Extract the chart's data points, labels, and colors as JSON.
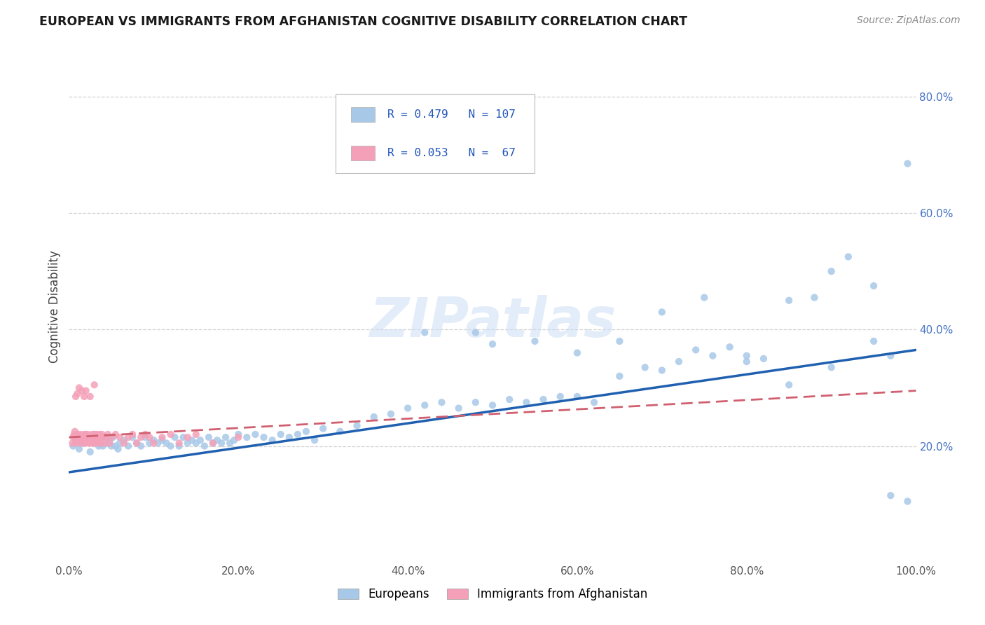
{
  "title": "EUROPEAN VS IMMIGRANTS FROM AFGHANISTAN COGNITIVE DISABILITY CORRELATION CHART",
  "source": "Source: ZipAtlas.com",
  "ylabel": "Cognitive Disability",
  "xlim": [
    0,
    1.0
  ],
  "ylim": [
    0,
    0.88
  ],
  "xticks": [
    0.0,
    0.2,
    0.4,
    0.6,
    0.8,
    1.0
  ],
  "xtick_labels": [
    "0.0%",
    "20.0%",
    "40.0%",
    "60.0%",
    "80.0%",
    "100.0%"
  ],
  "yticks": [
    0.2,
    0.4,
    0.6,
    0.8
  ],
  "ytick_labels": [
    "20.0%",
    "40.0%",
    "60.0%",
    "80.0%"
  ],
  "r_european": 0.479,
  "n_european": 107,
  "r_afghan": 0.053,
  "n_afghan": 67,
  "european_color": "#a8c8e8",
  "afghan_color": "#f4a0b8",
  "european_line_color": "#2060b0",
  "afghan_line_color": "#d06070",
  "background_color": "#ffffff",
  "grid_color": "#cccccc",
  "european_x": [
    0.005,
    0.008,
    0.01,
    0.012,
    0.015,
    0.018,
    0.02,
    0.022,
    0.025,
    0.028,
    0.03,
    0.032,
    0.035,
    0.038,
    0.04,
    0.042,
    0.045,
    0.048,
    0.05,
    0.052,
    0.055,
    0.058,
    0.06,
    0.065,
    0.07,
    0.075,
    0.08,
    0.085,
    0.09,
    0.095,
    0.1,
    0.105,
    0.11,
    0.115,
    0.12,
    0.125,
    0.13,
    0.135,
    0.14,
    0.145,
    0.15,
    0.155,
    0.16,
    0.165,
    0.17,
    0.175,
    0.18,
    0.185,
    0.19,
    0.195,
    0.2,
    0.21,
    0.22,
    0.23,
    0.24,
    0.25,
    0.26,
    0.27,
    0.28,
    0.29,
    0.3,
    0.32,
    0.34,
    0.36,
    0.38,
    0.4,
    0.42,
    0.44,
    0.46,
    0.48,
    0.5,
    0.52,
    0.54,
    0.56,
    0.58,
    0.6,
    0.62,
    0.65,
    0.68,
    0.7,
    0.72,
    0.74,
    0.76,
    0.78,
    0.8,
    0.82,
    0.85,
    0.88,
    0.9,
    0.92,
    0.95,
    0.97,
    0.99,
    0.42,
    0.48,
    0.5,
    0.55,
    0.6,
    0.65,
    0.7,
    0.75,
    0.8,
    0.85,
    0.9,
    0.95,
    0.97,
    0.99
  ],
  "european_y": [
    0.2,
    0.21,
    0.22,
    0.195,
    0.205,
    0.215,
    0.22,
    0.21,
    0.19,
    0.205,
    0.22,
    0.21,
    0.2,
    0.215,
    0.2,
    0.215,
    0.205,
    0.21,
    0.2,
    0.215,
    0.2,
    0.195,
    0.205,
    0.21,
    0.2,
    0.215,
    0.205,
    0.2,
    0.215,
    0.205,
    0.21,
    0.205,
    0.21,
    0.205,
    0.2,
    0.215,
    0.2,
    0.215,
    0.205,
    0.21,
    0.205,
    0.21,
    0.2,
    0.215,
    0.205,
    0.21,
    0.205,
    0.215,
    0.205,
    0.21,
    0.22,
    0.215,
    0.22,
    0.215,
    0.21,
    0.22,
    0.215,
    0.22,
    0.225,
    0.21,
    0.23,
    0.225,
    0.235,
    0.25,
    0.255,
    0.265,
    0.27,
    0.275,
    0.265,
    0.275,
    0.27,
    0.28,
    0.275,
    0.28,
    0.285,
    0.285,
    0.275,
    0.32,
    0.335,
    0.33,
    0.345,
    0.365,
    0.355,
    0.37,
    0.345,
    0.35,
    0.45,
    0.455,
    0.5,
    0.525,
    0.475,
    0.355,
    0.685,
    0.395,
    0.395,
    0.375,
    0.38,
    0.36,
    0.38,
    0.43,
    0.455,
    0.355,
    0.305,
    0.335,
    0.38,
    0.115,
    0.105
  ],
  "afghan_x": [
    0.004,
    0.005,
    0.006,
    0.007,
    0.008,
    0.009,
    0.01,
    0.011,
    0.012,
    0.013,
    0.014,
    0.015,
    0.016,
    0.017,
    0.018,
    0.019,
    0.02,
    0.021,
    0.022,
    0.023,
    0.024,
    0.025,
    0.026,
    0.027,
    0.028,
    0.029,
    0.03,
    0.031,
    0.032,
    0.033,
    0.034,
    0.035,
    0.036,
    0.037,
    0.038,
    0.039,
    0.04,
    0.042,
    0.044,
    0.046,
    0.048,
    0.05,
    0.055,
    0.06,
    0.065,
    0.07,
    0.075,
    0.08,
    0.085,
    0.09,
    0.095,
    0.1,
    0.11,
    0.12,
    0.13,
    0.14,
    0.15,
    0.17,
    0.2,
    0.008,
    0.01,
    0.012,
    0.015,
    0.018,
    0.02,
    0.025,
    0.03
  ],
  "afghan_y": [
    0.205,
    0.215,
    0.22,
    0.225,
    0.205,
    0.21,
    0.215,
    0.22,
    0.215,
    0.205,
    0.215,
    0.22,
    0.215,
    0.205,
    0.215,
    0.22,
    0.205,
    0.21,
    0.22,
    0.215,
    0.205,
    0.21,
    0.215,
    0.22,
    0.205,
    0.215,
    0.22,
    0.205,
    0.215,
    0.22,
    0.205,
    0.215,
    0.22,
    0.205,
    0.215,
    0.22,
    0.215,
    0.205,
    0.215,
    0.22,
    0.205,
    0.215,
    0.22,
    0.215,
    0.205,
    0.215,
    0.22,
    0.205,
    0.215,
    0.22,
    0.215,
    0.205,
    0.215,
    0.22,
    0.205,
    0.215,
    0.22,
    0.205,
    0.215,
    0.285,
    0.29,
    0.3,
    0.295,
    0.285,
    0.295,
    0.285,
    0.305
  ]
}
